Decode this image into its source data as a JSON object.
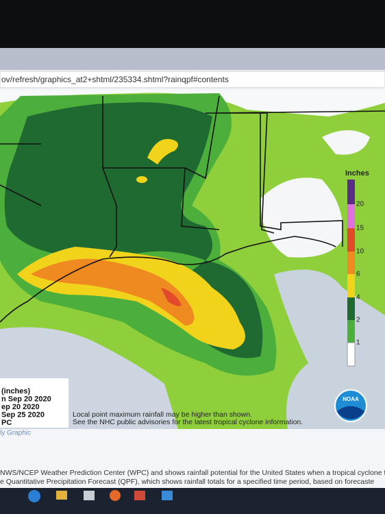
{
  "browser": {
    "url": "ov/refresh/graphics_at2+shtml/235334.shtml?rainqpf#contents"
  },
  "map": {
    "legend": {
      "title": "Inches",
      "levels": [
        20,
        15,
        10,
        6,
        4,
        2,
        1
      ]
    },
    "info_box": {
      "lines": [
        "(inches)",
        "n Sep 20 2020",
        "ep 20 2020",
        "Sep 25 2020",
        "PC"
      ]
    },
    "notes": [
      "Local point maximum rainfall may be higher than shown.",
      "See the NHC public advisories for the latest tropical cyclone information."
    ],
    "logo": "NOAA"
  },
  "page": {
    "link": "ly Graphic",
    "description": [
      "NWS/NCEP Weather Prediction Center (WPC) and shows rainfall potential for the United States when a tropical cyclone t",
      "e Quantitative Precipitation Forecast (QPF), which shows rainfall totals for a specified time period, based on forecaste"
    ]
  }
}
